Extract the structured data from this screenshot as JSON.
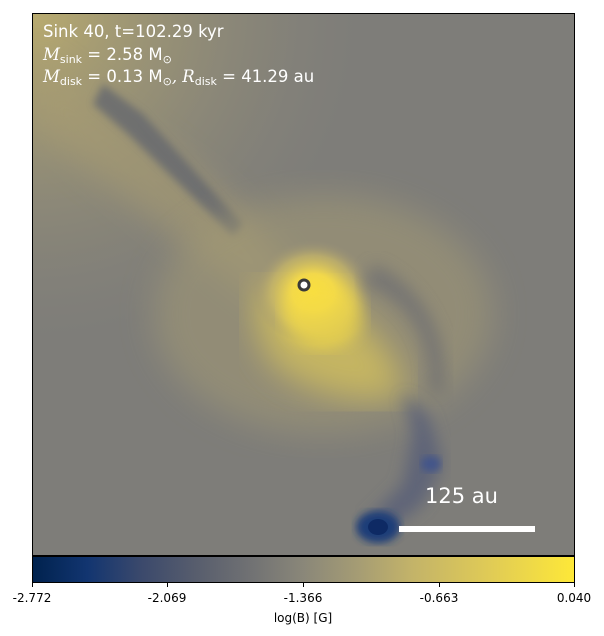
{
  "info": {
    "line1": "Sink 40, t=102.29 kyr",
    "msink_label": "M",
    "msink_sub": "sink",
    "msink_value": " = 2.58 M",
    "msink_sun": "⊙",
    "mdisk_label": "M",
    "mdisk_sub": "disk",
    "mdisk_value": " = 0.13 M",
    "mdisk_sun": "⊙",
    "rdisk_label": ", R",
    "rdisk_sub": "disk",
    "rdisk_value": " = 41.29 au"
  },
  "scale_bar": {
    "label": "125 au"
  },
  "colorbar": {
    "label": "log(B) [G]",
    "ticks": [
      "-2.772",
      "-2.069",
      "-1.366",
      "-0.663",
      "0.040"
    ],
    "colors": {
      "min": "#00224e",
      "mid": "#7c7b78",
      "max": "#fee838"
    }
  },
  "sink": {
    "marker_color": "#ffffff",
    "ring_color": "#3a3a3a"
  }
}
